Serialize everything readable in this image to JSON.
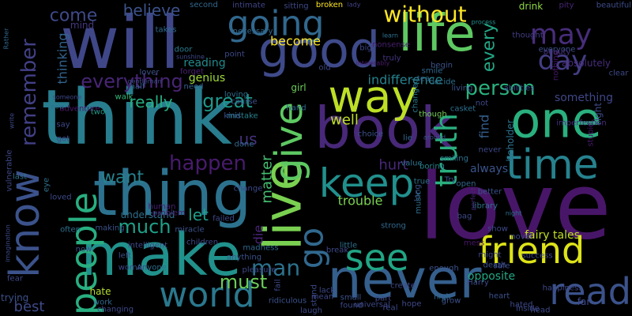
{
  "cloud": {
    "background": "#000000",
    "words": [
      {
        "text": "will",
        "color": "#3f4788"
      },
      {
        "text": "think",
        "color": "#287d8e"
      },
      {
        "text": "love",
        "color": "#481668"
      },
      {
        "text": "good",
        "color": "#3e4a89"
      },
      {
        "text": "life",
        "color": "#5ec962"
      },
      {
        "text": "one",
        "color": "#2ab07f"
      },
      {
        "text": "book",
        "color": "#482878"
      },
      {
        "text": "thing",
        "color": "#2c728e"
      },
      {
        "text": "make",
        "color": "#21918c"
      },
      {
        "text": "never",
        "color": "#355f8d"
      },
      {
        "text": "live",
        "color": "#7ad151"
      },
      {
        "text": "going",
        "color": "#31688e"
      },
      {
        "text": "friend",
        "color": "#dde318"
      },
      {
        "text": "may",
        "color": "#472d7b"
      },
      {
        "text": "day",
        "color": "#433e85"
      },
      {
        "text": "way",
        "color": "#bddf26"
      },
      {
        "text": "know",
        "color": "#3b528b"
      },
      {
        "text": "time",
        "color": "#26828e"
      },
      {
        "text": "keep",
        "color": "#21908d"
      },
      {
        "text": "give",
        "color": "#5ec962"
      },
      {
        "text": "people",
        "color": "#28ae80"
      },
      {
        "text": "world",
        "color": "#2a788e"
      },
      {
        "text": "read",
        "color": "#3b528b"
      },
      {
        "text": "see",
        "color": "#21a585"
      },
      {
        "text": "truth",
        "color": "#2ab07f"
      },
      {
        "text": "without",
        "color": "#fde725"
      },
      {
        "text": "remember",
        "color": "#424086"
      },
      {
        "text": "everything",
        "color": "#482576"
      },
      {
        "text": "go",
        "color": "#31688e"
      },
      {
        "text": "man",
        "color": "#2c728e"
      },
      {
        "text": "much",
        "color": "#1fa088"
      },
      {
        "text": "happen",
        "color": "#481b6d"
      },
      {
        "text": "want",
        "color": "#26828e"
      },
      {
        "text": "person",
        "color": "#2ab07f"
      },
      {
        "text": "great",
        "color": "#1f988b"
      },
      {
        "text": "must",
        "color": "#6ccd5a"
      },
      {
        "text": "come",
        "color": "#3e4a89"
      },
      {
        "text": "believe",
        "color": "#3b528b"
      },
      {
        "text": "every",
        "color": "#22a785"
      },
      {
        "text": "let",
        "color": "#1f9f88"
      },
      {
        "text": "really",
        "color": "#27ad81"
      },
      {
        "text": "us",
        "color": "#46327e"
      },
      {
        "text": "matter",
        "color": "#44bf70"
      },
      {
        "text": "die",
        "color": "#482475"
      },
      {
        "text": "thinking",
        "color": "#33638d"
      },
      {
        "text": "well",
        "color": "#bddf26"
      },
      {
        "text": "hurt",
        "color": "#482878"
      },
      {
        "text": "find",
        "color": "#34608d"
      },
      {
        "text": "always",
        "color": "#3a548c"
      },
      {
        "text": "opposite",
        "color": "#22a785"
      },
      {
        "text": "best",
        "color": "#3e4989"
      },
      {
        "text": "become",
        "color": "#fde725"
      },
      {
        "text": "indifference",
        "color": "#26828e"
      },
      {
        "text": "trouble",
        "color": "#7ad151"
      },
      {
        "text": "something",
        "color": "#3f4788"
      },
      {
        "text": "fairy tales",
        "color": "#c2df23"
      },
      {
        "text": "understand",
        "color": "#2d708e"
      },
      {
        "text": "reading",
        "color": "#238a8d"
      },
      {
        "text": "genius",
        "color": "#a0da39"
      },
      {
        "text": "drink",
        "color": "#90d743"
      },
      {
        "text": "thought",
        "color": "#433e85"
      },
      {
        "text": "mind",
        "color": "#453781"
      },
      {
        "text": "everyone",
        "color": "#3b528b"
      },
      {
        "text": "absolutely",
        "color": "#472c7a"
      },
      {
        "text": "nothing",
        "color": "#481769"
      },
      {
        "text": "beauty",
        "color": "#46337f"
      },
      {
        "text": "pity",
        "color": "#482677"
      },
      {
        "text": "beautiful",
        "color": "#3d4d8a"
      },
      {
        "text": "second",
        "color": "#31688e"
      },
      {
        "text": "intimate",
        "color": "#404588"
      },
      {
        "text": "sitting",
        "color": "#3e4989"
      },
      {
        "text": "broken",
        "color": "#fde725"
      },
      {
        "text": "Rather",
        "color": "#31688e"
      },
      {
        "text": "lady",
        "color": "#424086"
      },
      {
        "text": "learn",
        "color": "#2d708e"
      },
      {
        "text": "tea",
        "color": "#31688e"
      },
      {
        "text": "decide",
        "color": "#2c728e"
      },
      {
        "text": "living",
        "color": "#3b528b"
      },
      {
        "text": "takes",
        "color": "#2f6c8e"
      },
      {
        "text": "door",
        "color": "#287d8e"
      },
      {
        "text": "sunshine",
        "color": "#3e4a89"
      },
      {
        "text": "forget",
        "color": "#482071"
      },
      {
        "text": "lover",
        "color": "#3b528b"
      },
      {
        "text": "gentleman",
        "color": "#3e4989"
      },
      {
        "text": "half",
        "color": "#365c8d"
      },
      {
        "text": "need",
        "color": "#33638d"
      },
      {
        "text": "point",
        "color": "#3e4989"
      },
      {
        "text": "necessary",
        "color": "#31688e"
      },
      {
        "text": "process",
        "color": "#21918c"
      },
      {
        "text": "nonsense",
        "color": "#481f70"
      },
      {
        "text": "smile",
        "color": "#31688e"
      },
      {
        "text": "begin",
        "color": "#3b528b"
      },
      {
        "text": "truly",
        "color": "#453581"
      },
      {
        "text": "big",
        "color": "#3e4989"
      },
      {
        "text": "intolerably",
        "color": "#481b6d"
      },
      {
        "text": "old",
        "color": "#3e4989"
      },
      {
        "text": "girl",
        "color": "#6ccd5a"
      },
      {
        "text": "loving",
        "color": "#2d708e"
      },
      {
        "text": "course",
        "color": "#3b528b"
      },
      {
        "text": "mistake",
        "color": "#26828e"
      },
      {
        "text": "walk",
        "color": "#35b779"
      },
      {
        "text": "two",
        "color": "#1f9f88"
      },
      {
        "text": "adventure",
        "color": "#481668"
      },
      {
        "text": "someone",
        "color": "#3e4989"
      },
      {
        "text": "new",
        "color": "#2d708e"
      },
      {
        "text": "kind",
        "color": "#3b528b"
      },
      {
        "text": "done",
        "color": "#31688e"
      },
      {
        "text": "change",
        "color": "#3e4989"
      },
      {
        "text": "value",
        "color": "#2d708e"
      },
      {
        "text": "Try",
        "color": "#3b528b"
      },
      {
        "text": "open",
        "color": "#31688e"
      },
      {
        "text": "true",
        "color": "#2c728e"
      },
      {
        "text": "hand",
        "color": "#31688e"
      },
      {
        "text": "changed",
        "color": "#2a788e"
      },
      {
        "text": "though",
        "color": "#73d056"
      },
      {
        "text": "casket",
        "color": "#2d708e"
      },
      {
        "text": "abilities",
        "color": "#3b528b"
      },
      {
        "text": "better",
        "color": "#3b528b"
      },
      {
        "text": "library",
        "color": "#2d708e"
      },
      {
        "text": "perfect",
        "color": "#482677"
      },
      {
        "text": "beholder",
        "color": "#2d708e"
      },
      {
        "text": "imperfection",
        "color": "#472d7b"
      },
      {
        "text": "stupid",
        "color": "#481b6d"
      },
      {
        "text": "right",
        "color": "#3e4989"
      },
      {
        "text": "choice",
        "color": "#3b528b"
      },
      {
        "text": "lie",
        "color": "#31688e"
      },
      {
        "text": "around",
        "color": "#3b528b"
      },
      {
        "text": "boring",
        "color": "#26828e"
      },
      {
        "text": "smiling",
        "color": "#2d708e"
      },
      {
        "text": "long",
        "color": "#3b528b"
      },
      {
        "text": "bag",
        "color": "#3e4989"
      },
      {
        "text": "night",
        "color": "#2d708e"
      },
      {
        "text": "show",
        "color": "#3e4989"
      },
      {
        "text": "novel",
        "color": "#3e4989"
      },
      {
        "text": "mess",
        "color": "#481668"
      },
      {
        "text": "safe",
        "color": "#3e4989"
      },
      {
        "text": "might",
        "color": "#3e4989"
      },
      {
        "text": "enough",
        "color": "#3b528b"
      },
      {
        "text": "music",
        "color": "#2d708e"
      },
      {
        "text": "strong",
        "color": "#31688e"
      },
      {
        "text": "break",
        "color": "#3e4989"
      },
      {
        "text": "little",
        "color": "#2d708e"
      },
      {
        "text": "madness",
        "color": "#31688e"
      },
      {
        "text": "failed",
        "color": "#3e4989"
      },
      {
        "text": "miracle",
        "color": "#3b528b"
      },
      {
        "text": "children",
        "color": "#3e4989"
      },
      {
        "text": "problem",
        "color": "#482071"
      },
      {
        "text": "human",
        "color": "#482071"
      },
      {
        "text": "Anyone",
        "color": "#2d708e"
      },
      {
        "text": "loved",
        "color": "#3e4989"
      },
      {
        "text": "often",
        "color": "#2d708e"
      },
      {
        "text": "making",
        "color": "#3b528b"
      },
      {
        "text": "intelligent",
        "color": "#3e4989"
      },
      {
        "text": "left",
        "color": "#3b528b"
      },
      {
        "text": "hate",
        "color": "#b5de2b"
      },
      {
        "text": "fear",
        "color": "#3e4989"
      },
      {
        "text": "trying",
        "color": "#3b528b"
      },
      {
        "text": "woman",
        "color": "#3e4989"
      },
      {
        "text": "work",
        "color": "#31688e"
      },
      {
        "text": "changing",
        "color": "#3e4989"
      },
      {
        "text": "now",
        "color": "#3b528b"
      },
      {
        "text": "imagination",
        "color": "#3e4989"
      },
      {
        "text": "vulnerable",
        "color": "#3e4989"
      },
      {
        "text": "write",
        "color": "#3e4989"
      },
      {
        "text": "last",
        "color": "#2d708e"
      },
      {
        "text": "got",
        "color": "#3e4989"
      },
      {
        "text": "say",
        "color": "#3e4989"
      },
      {
        "text": "eye",
        "color": "#2d708e"
      },
      {
        "text": "pleasure",
        "color": "#3e4989"
      },
      {
        "text": "anything",
        "color": "#3b528b"
      },
      {
        "text": "fail",
        "color": "#3e4989"
      },
      {
        "text": "ridiculous",
        "color": "#3b528b"
      },
      {
        "text": "stand",
        "color": "#3e4989"
      },
      {
        "text": "laugh",
        "color": "#3e4989"
      },
      {
        "text": "mean",
        "color": "#3e4989"
      },
      {
        "text": "lack",
        "color": "#3e4989"
      },
      {
        "text": "universal",
        "color": "#3e4989"
      },
      {
        "text": "part",
        "color": "#3e4989"
      },
      {
        "text": "small",
        "color": "#3b528b"
      },
      {
        "text": "real",
        "color": "#3e4989"
      },
      {
        "text": "found",
        "color": "#3e4989"
      },
      {
        "text": "hope",
        "color": "#3e4989"
      },
      {
        "text": "grow",
        "color": "#3b528b"
      },
      {
        "text": "create",
        "color": "#3e4989"
      },
      {
        "text": "high",
        "color": "#31688e"
      },
      {
        "text": "heart",
        "color": "#3b528b"
      },
      {
        "text": "hated",
        "color": "#3e4989"
      },
      {
        "text": "Harry",
        "color": "#3e4989"
      },
      {
        "text": "death",
        "color": "#3b528b"
      },
      {
        "text": "success",
        "color": "#3e4989"
      },
      {
        "text": "inside",
        "color": "#3e4989"
      },
      {
        "text": "head",
        "color": "#3e4989"
      },
      {
        "text": "happiness",
        "color": "#3e4989"
      },
      {
        "text": "far",
        "color": "#3e4989"
      },
      {
        "text": "clear",
        "color": "#3e4989"
      },
      {
        "text": "not",
        "color": "#3e4989"
      },
      {
        "text": "never",
        "color": "#3e4989"
      }
    ]
  }
}
